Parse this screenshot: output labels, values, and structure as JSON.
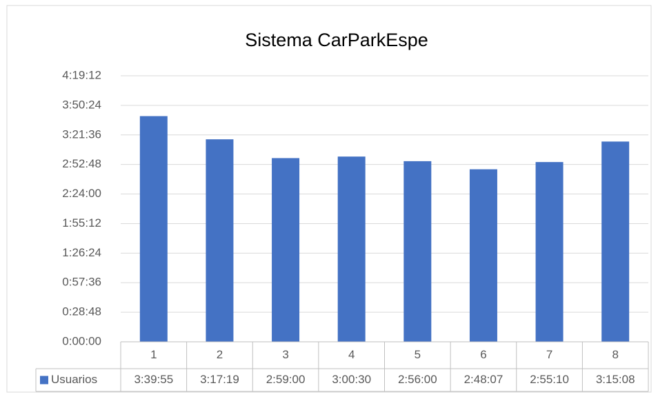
{
  "chart_data": {
    "type": "bar",
    "title": "Sistema CarParkEspe",
    "categories": [
      "1",
      "2",
      "3",
      "4",
      "5",
      "6",
      "7",
      "8"
    ],
    "series": [
      {
        "name": "Usuarios",
        "color": "#4472c4",
        "values": [
          13195,
          11839,
          10740,
          10830,
          10560,
          10087,
          10510,
          11708
        ],
        "value_labels": [
          "3:39:55",
          "3:17:19",
          "2:59:00",
          "3:00:30",
          "2:56:00",
          "2:48:07",
          "2:55:10",
          "3:15:08"
        ]
      }
    ],
    "ylim": [
      0,
      15552
    ],
    "yticks": [
      {
        "value": 0,
        "label": "0:00:00"
      },
      {
        "value": 1728,
        "label": "0:28:48"
      },
      {
        "value": 3456,
        "label": "0:57:36"
      },
      {
        "value": 5184,
        "label": "1:26:24"
      },
      {
        "value": 6912,
        "label": "1:55:12"
      },
      {
        "value": 8640,
        "label": "2:24:00"
      },
      {
        "value": 10368,
        "label": "2:52:48"
      },
      {
        "value": 12096,
        "label": "3:21:36"
      },
      {
        "value": 13824,
        "label": "3:50:24"
      },
      {
        "value": 15552,
        "label": "4:19:12"
      }
    ],
    "grid": true
  }
}
